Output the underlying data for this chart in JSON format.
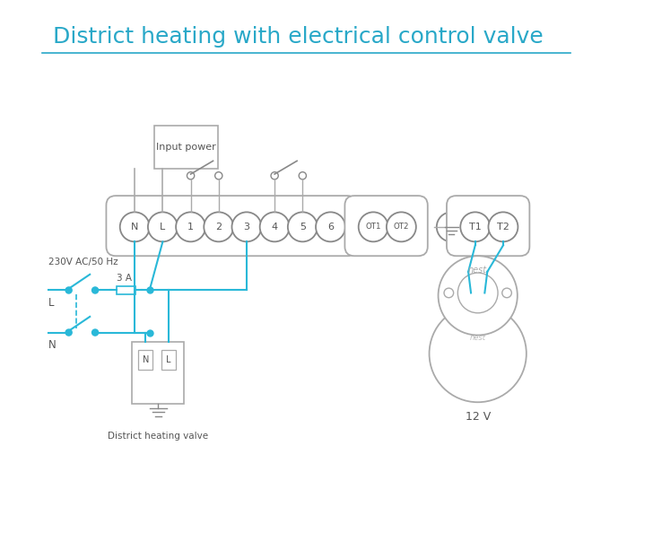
{
  "title": "District heating with electrical control valve",
  "title_color": "#29a8c8",
  "title_fontsize": 18,
  "bg_color": "#ffffff",
  "line_color": "#29b8d8",
  "box_color": "#888888",
  "terminal_color": "#888888",
  "text_color": "#555555",
  "label_12v": "12 V",
  "label_district": "District heating valve",
  "label_input": "Input power",
  "label_3A": "3 A",
  "label_230V": "230V AC/50 Hz",
  "label_L": "L",
  "label_N": "N"
}
